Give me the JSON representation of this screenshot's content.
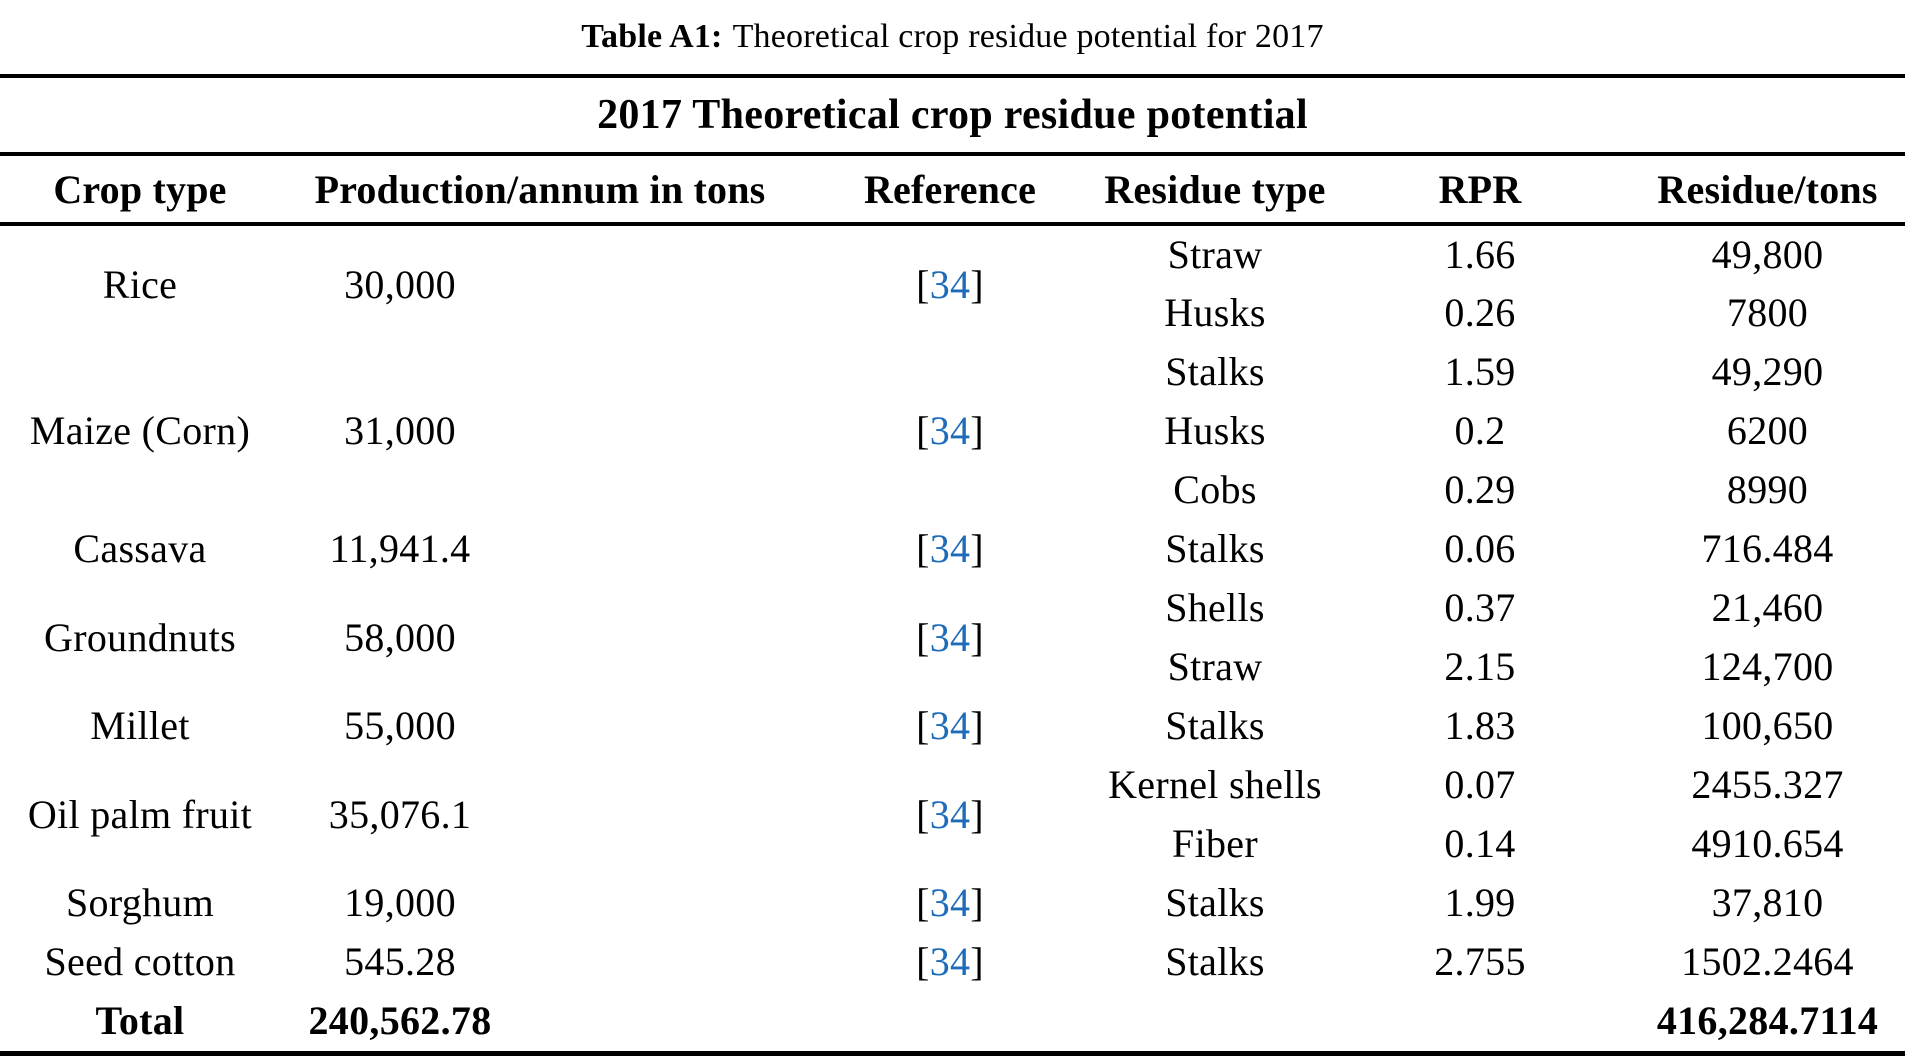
{
  "caption": {
    "prefix": "Table A1:",
    "text": "Theoretical crop residue potential for 2017"
  },
  "table": {
    "title": "2017 Theoretical crop residue potential",
    "columns": [
      "Crop type",
      "Production/annum in tons",
      "Reference",
      "Residue type",
      "RPR",
      "Residue/tons"
    ],
    "link_color": "#1E6BB8",
    "rows": [
      {
        "crop": "Rice",
        "production": "30,000",
        "reference": "34",
        "residues": [
          [
            "Straw",
            "1.66",
            "49,800"
          ],
          [
            "Husks",
            "0.26",
            "7800"
          ]
        ]
      },
      {
        "crop": "Maize (Corn)",
        "production": "31,000",
        "reference": "34",
        "residues": [
          [
            "Stalks",
            "1.59",
            "49,290"
          ],
          [
            "Husks",
            "0.2",
            "6200"
          ],
          [
            "Cobs",
            "0.29",
            "8990"
          ]
        ]
      },
      {
        "crop": "Cassava",
        "production": "11,941.4",
        "reference": "34",
        "residues": [
          [
            "Stalks",
            "0.06",
            "716.484"
          ]
        ]
      },
      {
        "crop": "Groundnuts",
        "production": "58,000",
        "reference": "34",
        "residues": [
          [
            "Shells",
            "0.37",
            "21,460"
          ],
          [
            "Straw",
            "2.15",
            "124,700"
          ]
        ]
      },
      {
        "crop": "Millet",
        "production": "55,000",
        "reference": "34",
        "residues": [
          [
            "Stalks",
            "1.83",
            "100,650"
          ]
        ]
      },
      {
        "crop": "Oil palm fruit",
        "production": "35,076.1",
        "reference": "34",
        "residues": [
          [
            "Kernel shells",
            "0.07",
            "2455.327"
          ],
          [
            "Fiber",
            "0.14",
            "4910.654"
          ]
        ]
      },
      {
        "crop": "Sorghum",
        "production": "19,000",
        "reference": "34",
        "residues": [
          [
            "Stalks",
            "1.99",
            "37,810"
          ]
        ]
      },
      {
        "crop": "Seed cotton",
        "production": "545.28",
        "reference": "34",
        "residues": [
          [
            "Stalks",
            "2.755",
            "1502.2464"
          ]
        ]
      }
    ],
    "total": {
      "label": "Total",
      "production": "240,562.78",
      "residue": "416,284.7114"
    }
  }
}
